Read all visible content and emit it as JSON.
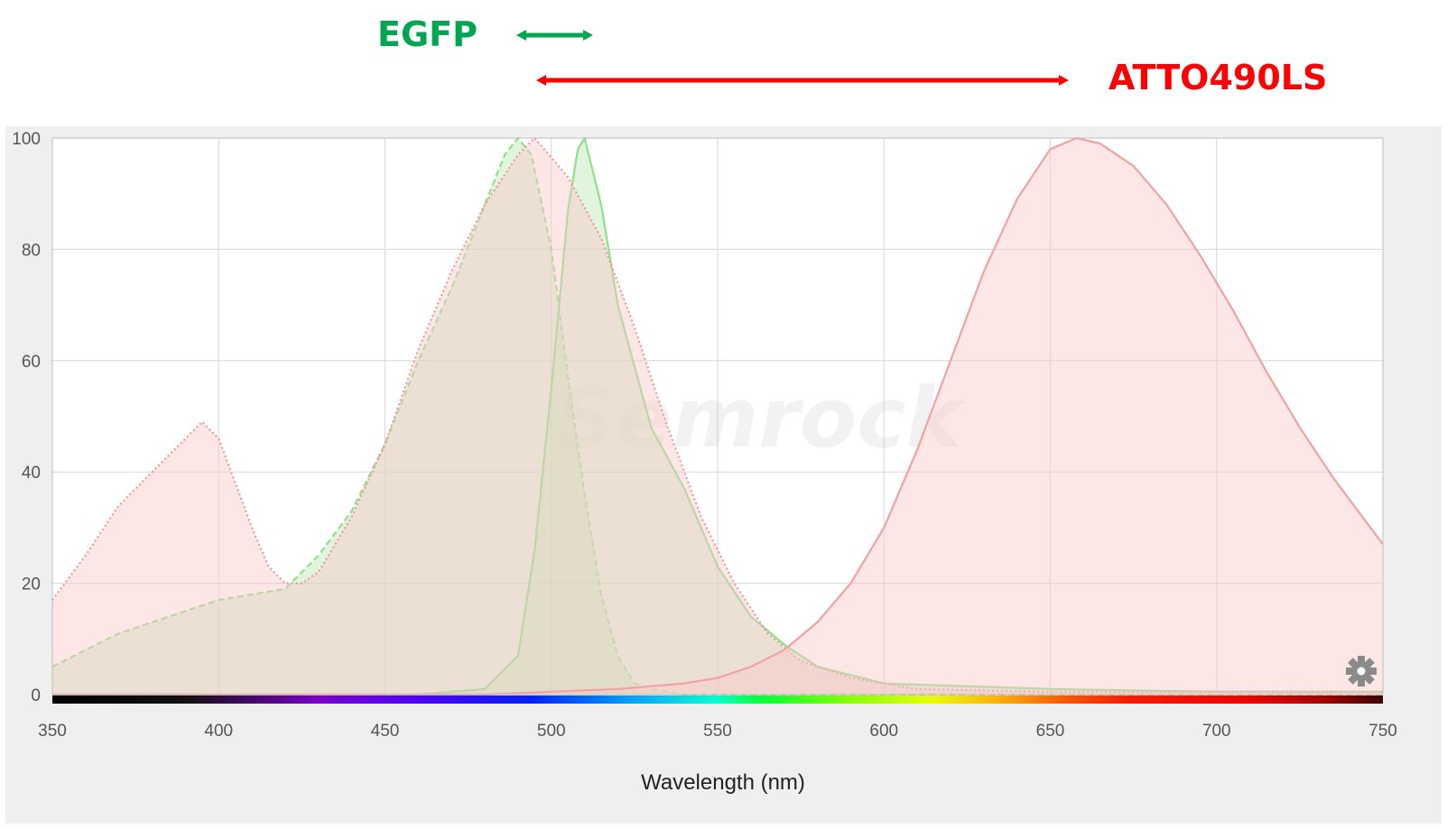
{
  "annotations": {
    "egfp": {
      "label": "EGFP",
      "color": "#00a550",
      "range_nm": [
        490,
        512
      ]
    },
    "atto": {
      "label": "ATTO490LS",
      "color": "#ff0000",
      "range_nm": [
        496,
        655
      ]
    }
  },
  "watermark": "Semrock",
  "settings_icon": "gear-icon",
  "chart_data": {
    "type": "area",
    "xlabel": "Wavelength (nm)",
    "ylabel": "",
    "xlim": [
      350,
      750
    ],
    "ylim": [
      0,
      100
    ],
    "x_ticks": [
      "350",
      "400",
      "450",
      "500",
      "550",
      "600",
      "650",
      "700",
      "750"
    ],
    "y_ticks": [
      "0",
      "20",
      "40",
      "60",
      "80",
      "100"
    ],
    "grid": true,
    "legend": "none",
    "spectrum_bar": true,
    "series": [
      {
        "dye": "EGFP",
        "kind": "excitation",
        "style": "dashed",
        "stroke": "#8fe08a",
        "fill": "#bde9b4",
        "points": [
          [
            350,
            5
          ],
          [
            360,
            8
          ],
          [
            370,
            11
          ],
          [
            380,
            13
          ],
          [
            390,
            15
          ],
          [
            400,
            17
          ],
          [
            410,
            18
          ],
          [
            420,
            19
          ],
          [
            430,
            25
          ],
          [
            440,
            33
          ],
          [
            450,
            45
          ],
          [
            460,
            60
          ],
          [
            470,
            73
          ],
          [
            480,
            88
          ],
          [
            486,
            97
          ],
          [
            490,
            100
          ],
          [
            494,
            97
          ],
          [
            500,
            80
          ],
          [
            505,
            57
          ],
          [
            510,
            36
          ],
          [
            515,
            18
          ],
          [
            520,
            7
          ],
          [
            525,
            2
          ],
          [
            530,
            1
          ],
          [
            540,
            0
          ],
          [
            750,
            0
          ]
        ]
      },
      {
        "dye": "EGFP",
        "kind": "emission",
        "style": "solid",
        "stroke": "#8fe08a",
        "fill": "#bde9b4",
        "points": [
          [
            350,
            0
          ],
          [
            460,
            0
          ],
          [
            480,
            1
          ],
          [
            490,
            7
          ],
          [
            495,
            26
          ],
          [
            500,
            55
          ],
          [
            505,
            87
          ],
          [
            508,
            98
          ],
          [
            510,
            100
          ],
          [
            515,
            88
          ],
          [
            520,
            70
          ],
          [
            530,
            48
          ],
          [
            540,
            37
          ],
          [
            550,
            23
          ],
          [
            560,
            14
          ],
          [
            570,
            9
          ],
          [
            580,
            5
          ],
          [
            600,
            2
          ],
          [
            650,
            1
          ],
          [
            700,
            0.5
          ],
          [
            750,
            0.5
          ]
        ]
      },
      {
        "dye": "ATTO490LS",
        "kind": "excitation",
        "style": "dotted",
        "stroke": "#ee9a9a",
        "fill": "#f8c7c7",
        "points": [
          [
            350,
            17
          ],
          [
            360,
            25
          ],
          [
            370,
            34
          ],
          [
            380,
            40
          ],
          [
            390,
            46
          ],
          [
            395,
            49
          ],
          [
            400,
            46
          ],
          [
            405,
            38
          ],
          [
            410,
            30
          ],
          [
            415,
            23
          ],
          [
            420,
            20
          ],
          [
            425,
            20
          ],
          [
            430,
            22
          ],
          [
            440,
            32
          ],
          [
            450,
            45
          ],
          [
            460,
            62
          ],
          [
            470,
            76
          ],
          [
            480,
            88
          ],
          [
            490,
            97
          ],
          [
            495,
            100
          ],
          [
            505,
            93
          ],
          [
            515,
            82
          ],
          [
            525,
            66
          ],
          [
            535,
            48
          ],
          [
            545,
            32
          ],
          [
            555,
            20
          ],
          [
            565,
            11
          ],
          [
            575,
            6
          ],
          [
            590,
            3
          ],
          [
            610,
            1
          ],
          [
            650,
            0.5
          ],
          [
            750,
            0.5
          ]
        ]
      },
      {
        "dye": "ATTO490LS",
        "kind": "emission",
        "style": "solid",
        "stroke": "#f1a2a2",
        "fill": "#f8c7c7",
        "points": [
          [
            350,
            0
          ],
          [
            480,
            0
          ],
          [
            500,
            0.5
          ],
          [
            520,
            1
          ],
          [
            540,
            2
          ],
          [
            550,
            3
          ],
          [
            560,
            5
          ],
          [
            570,
            8
          ],
          [
            580,
            13
          ],
          [
            590,
            20
          ],
          [
            600,
            30
          ],
          [
            610,
            44
          ],
          [
            620,
            60
          ],
          [
            630,
            76
          ],
          [
            640,
            89
          ],
          [
            650,
            98
          ],
          [
            658,
            100
          ],
          [
            665,
            99
          ],
          [
            675,
            95
          ],
          [
            685,
            88
          ],
          [
            695,
            79
          ],
          [
            705,
            69
          ],
          [
            715,
            58
          ],
          [
            725,
            48
          ],
          [
            735,
            39
          ],
          [
            745,
            31
          ],
          [
            750,
            27
          ]
        ]
      }
    ]
  }
}
